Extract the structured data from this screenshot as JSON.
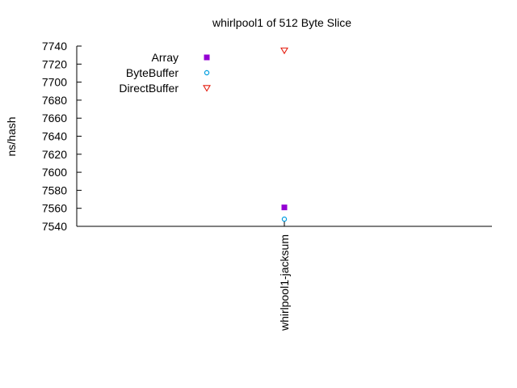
{
  "chart_data": {
    "type": "scatter",
    "title": "whirlpool1 of 512 Byte Slice",
    "xlabel": "",
    "ylabel": "ns/hash",
    "categories": [
      "whirlpool1-jacksum"
    ],
    "ylim": [
      7540,
      7740
    ],
    "yticks": [
      7540,
      7560,
      7580,
      7600,
      7620,
      7640,
      7660,
      7680,
      7700,
      7720,
      7740
    ],
    "grid": false,
    "legend_position": "top-left",
    "series": [
      {
        "name": "Array",
        "values": [
          7561
        ],
        "color": "#9400d3",
        "marker": "filled-square"
      },
      {
        "name": "ByteBuffer",
        "values": [
          7548
        ],
        "color": "#009ee0",
        "marker": "open-circle"
      },
      {
        "name": "DirectBuffer",
        "values": [
          7735
        ],
        "color": "#e51e10",
        "marker": "open-triangle-down"
      }
    ]
  }
}
